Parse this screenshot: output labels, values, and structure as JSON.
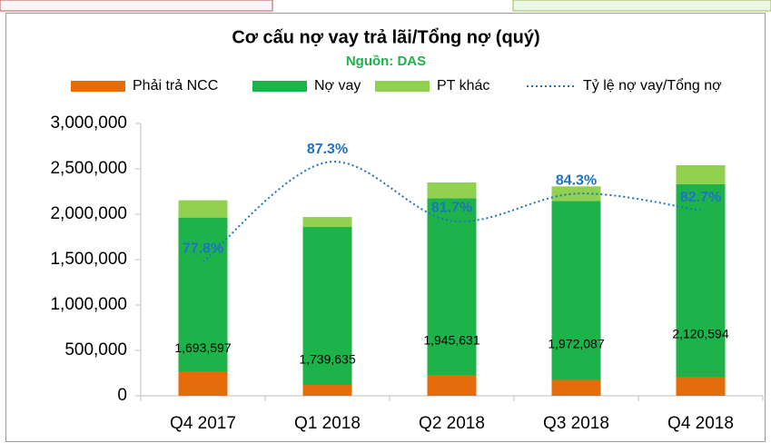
{
  "chart_data": {
    "type": "bar",
    "title": "Cơ cấu nợ vay trả lãi/Tổng nợ (quý)",
    "subtitle": "Nguồn: DAS",
    "categories": [
      "Q4 2017",
      "Q1 2018",
      "Q2 2018",
      "Q3 2018",
      "Q4 2018"
    ],
    "stacked": true,
    "series": [
      {
        "name": "Phải trả NCC",
        "color": "#e46c0a",
        "values": [
          270000,
          120000,
          230000,
          175000,
          210000
        ]
      },
      {
        "name": "Nợ vay",
        "color": "#1eb34a",
        "values": [
          1693597,
          1739635,
          1945631,
          1972087,
          2120594
        ],
        "value_labels": [
          "1,693,597",
          "1,739,635",
          "1,945,631",
          "1,972,087",
          "2,120,594"
        ]
      },
      {
        "name": "PT khác",
        "color": "#92d050",
        "values": [
          190000,
          110000,
          175000,
          160000,
          210000
        ]
      },
      {
        "name": "Tỷ lệ nợ vay/Tổng nợ",
        "type": "line",
        "axis": "y2",
        "color": "#1f73c3",
        "values": [
          77.8,
          87.3,
          81.7,
          84.3,
          82.7
        ],
        "value_labels": [
          "77.8%",
          "87.3%",
          "81.7%",
          "84.3%",
          "82.7%"
        ]
      }
    ],
    "ylim": [
      0,
      3000000
    ],
    "yticks": [
      0,
      {
        "value": 500000,
        "label": "500,000"
      },
      {
        "value": 1000000,
        "label": "1,000,000"
      },
      {
        "value": 1500000,
        "label": "1,500,000"
      },
      {
        "value": 2000000,
        "label": "2,000,000"
      },
      {
        "value": 2500000,
        "label": "2,500,000"
      },
      {
        "value": 3000000,
        "label": "3,000,000"
      }
    ],
    "y2lim": [
      65,
      91
    ],
    "legend": "top"
  }
}
